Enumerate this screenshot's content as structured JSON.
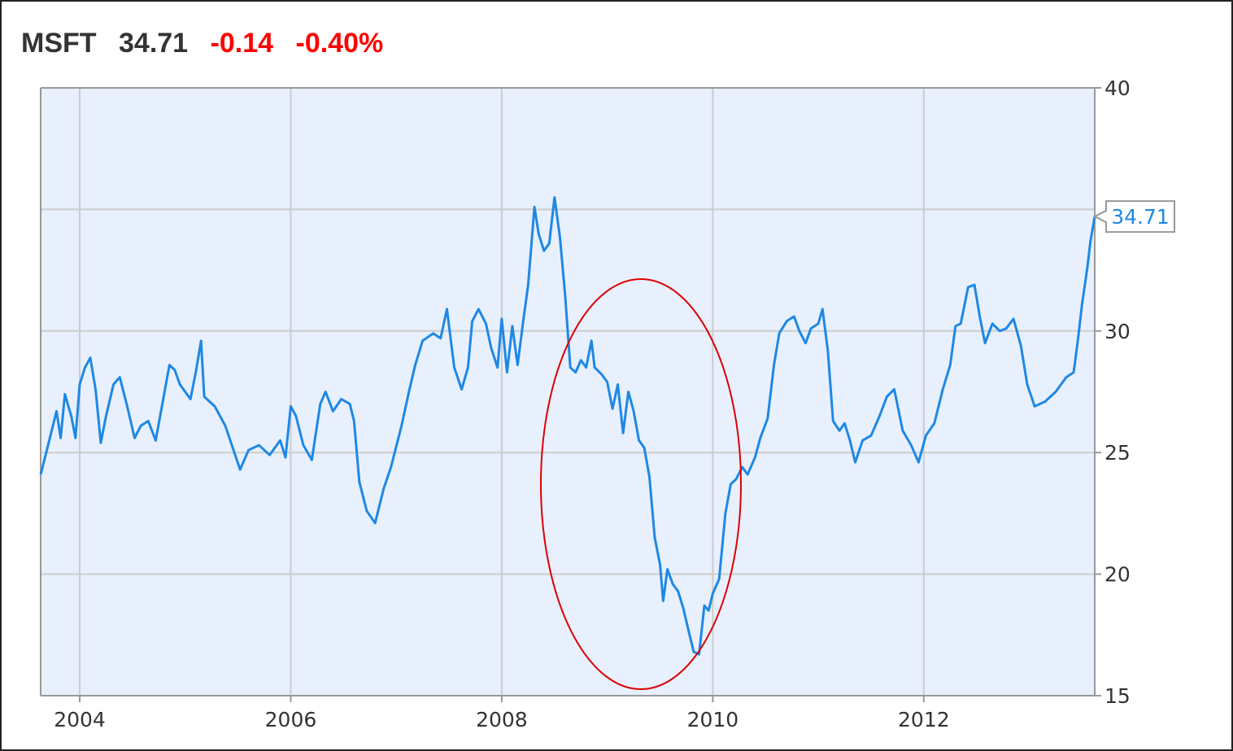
{
  "header": {
    "ticker": "MSFT",
    "price": "34.71",
    "change": "-0.14",
    "change_pct": "-0.40%"
  },
  "colors": {
    "line": "#1e88e5",
    "plot_bg": "#e8f0fd",
    "grid": "#cccccc",
    "negative": "#ff0000",
    "annotation": "#dd0000"
  },
  "chart_data": {
    "type": "line",
    "title": "",
    "xlabel": "",
    "ylabel": "",
    "xlim": [
      2003.63,
      2013.62
    ],
    "ylim": [
      15,
      40
    ],
    "x_ticks": [
      "2004",
      "2006",
      "2008",
      "2010",
      "2012"
    ],
    "y_ticks": [
      "15",
      "20",
      "25",
      "30",
      "40"
    ],
    "grid": true,
    "y_axis_side": "right",
    "last_value_label": "34.71",
    "annotation": "red ellipse around the 2008–2009 trough",
    "series": [
      {
        "values": [
          [
            2003.63,
            24.1
          ],
          [
            2003.7,
            25.3
          ],
          [
            2003.78,
            26.7
          ],
          [
            2003.82,
            25.6
          ],
          [
            2003.86,
            27.4
          ],
          [
            2003.92,
            26.5
          ],
          [
            2003.96,
            25.6
          ],
          [
            2004.0,
            27.8
          ],
          [
            2004.05,
            28.5
          ],
          [
            2004.1,
            28.9
          ],
          [
            2004.15,
            27.6
          ],
          [
            2004.2,
            25.4
          ],
          [
            2004.25,
            26.5
          ],
          [
            2004.32,
            27.8
          ],
          [
            2004.38,
            28.1
          ],
          [
            2004.45,
            26.9
          ],
          [
            2004.52,
            25.6
          ],
          [
            2004.58,
            26.1
          ],
          [
            2004.65,
            26.3
          ],
          [
            2004.72,
            25.5
          ],
          [
            2004.8,
            27.4
          ],
          [
            2004.85,
            28.6
          ],
          [
            2004.9,
            28.4
          ],
          [
            2004.95,
            27.8
          ],
          [
            2005.05,
            27.2
          ],
          [
            2005.1,
            28.3
          ],
          [
            2005.15,
            29.6
          ],
          [
            2005.18,
            27.3
          ],
          [
            2005.28,
            26.9
          ],
          [
            2005.38,
            26.1
          ],
          [
            2005.45,
            25.2
          ],
          [
            2005.52,
            24.3
          ],
          [
            2005.6,
            25.1
          ],
          [
            2005.7,
            25.3
          ],
          [
            2005.8,
            24.9
          ],
          [
            2005.9,
            25.5
          ],
          [
            2005.95,
            24.8
          ],
          [
            2006.0,
            26.9
          ],
          [
            2006.05,
            26.5
          ],
          [
            2006.12,
            25.3
          ],
          [
            2006.2,
            24.7
          ],
          [
            2006.28,
            27.0
          ],
          [
            2006.33,
            27.5
          ],
          [
            2006.4,
            26.7
          ],
          [
            2006.48,
            27.2
          ],
          [
            2006.56,
            27.0
          ],
          [
            2006.6,
            26.3
          ],
          [
            2006.65,
            23.8
          ],
          [
            2006.72,
            22.6
          ],
          [
            2006.8,
            22.1
          ],
          [
            2006.88,
            23.5
          ],
          [
            2006.95,
            24.4
          ],
          [
            2007.05,
            26.1
          ],
          [
            2007.12,
            27.5
          ],
          [
            2007.18,
            28.6
          ],
          [
            2007.25,
            29.6
          ],
          [
            2007.35,
            29.9
          ],
          [
            2007.42,
            29.7
          ],
          [
            2007.48,
            30.9
          ],
          [
            2007.55,
            28.5
          ],
          [
            2007.62,
            27.6
          ],
          [
            2007.68,
            28.5
          ],
          [
            2007.72,
            30.4
          ],
          [
            2007.78,
            30.9
          ],
          [
            2007.85,
            30.3
          ],
          [
            2007.9,
            29.3
          ],
          [
            2007.96,
            28.5
          ],
          [
            2008.0,
            30.5
          ],
          [
            2008.05,
            28.3
          ],
          [
            2008.1,
            30.2
          ],
          [
            2008.15,
            28.6
          ],
          [
            2008.2,
            30.3
          ],
          [
            2008.25,
            31.9
          ],
          [
            2008.31,
            35.1
          ],
          [
            2008.35,
            34.0
          ],
          [
            2008.4,
            33.3
          ],
          [
            2008.45,
            33.6
          ],
          [
            2008.5,
            35.5
          ],
          [
            2008.55,
            33.9
          ],
          [
            2008.6,
            31.5
          ],
          [
            2008.65,
            28.5
          ],
          [
            2008.7,
            28.3
          ],
          [
            2008.75,
            28.8
          ],
          [
            2008.8,
            28.5
          ],
          [
            2008.85,
            29.6
          ],
          [
            2008.88,
            28.5
          ],
          [
            2008.95,
            28.2
          ],
          [
            2009.0,
            27.9
          ],
          [
            2009.05,
            26.8
          ],
          [
            2009.1,
            27.8
          ],
          [
            2009.15,
            25.8
          ],
          [
            2009.2,
            27.5
          ],
          [
            2009.25,
            26.7
          ],
          [
            2009.3,
            25.5
          ],
          [
            2009.35,
            25.2
          ],
          [
            2009.4,
            24.0
          ],
          [
            2009.45,
            21.5
          ],
          [
            2009.5,
            20.4
          ],
          [
            2009.53,
            18.9
          ],
          [
            2009.57,
            20.2
          ],
          [
            2009.62,
            19.6
          ],
          [
            2009.67,
            19.3
          ],
          [
            2009.72,
            18.6
          ],
          [
            2009.78,
            17.5
          ],
          [
            2009.82,
            16.8
          ],
          [
            2009.87,
            16.7
          ],
          [
            2009.92,
            18.7
          ],
          [
            2009.96,
            18.5
          ],
          [
            2010.0,
            19.2
          ],
          [
            2010.06,
            19.8
          ],
          [
            2010.12,
            22.5
          ],
          [
            2010.17,
            23.7
          ],
          [
            2010.22,
            23.9
          ],
          [
            2010.28,
            24.4
          ],
          [
            2010.33,
            24.1
          ],
          [
            2010.4,
            24.8
          ],
          [
            2010.45,
            25.6
          ],
          [
            2010.52,
            26.4
          ],
          [
            2010.58,
            28.6
          ],
          [
            2010.63,
            29.9
          ],
          [
            2010.7,
            30.4
          ],
          [
            2010.77,
            30.6
          ],
          [
            2010.82,
            30.0
          ],
          [
            2010.88,
            29.5
          ],
          [
            2010.93,
            30.1
          ],
          [
            2011.0,
            30.3
          ],
          [
            2011.04,
            30.9
          ],
          [
            2011.09,
            29.2
          ],
          [
            2011.14,
            26.3
          ],
          [
            2011.2,
            25.9
          ],
          [
            2011.25,
            26.2
          ],
          [
            2011.3,
            25.5
          ],
          [
            2011.35,
            24.6
          ],
          [
            2011.42,
            25.5
          ],
          [
            2011.5,
            25.7
          ],
          [
            2011.58,
            26.5
          ],
          [
            2011.65,
            27.3
          ],
          [
            2011.72,
            27.6
          ],
          [
            2011.8,
            25.9
          ],
          [
            2011.88,
            25.3
          ],
          [
            2011.95,
            24.6
          ],
          [
            2012.02,
            25.7
          ],
          [
            2012.1,
            26.2
          ],
          [
            2012.18,
            27.6
          ],
          [
            2012.25,
            28.6
          ],
          [
            2012.3,
            30.2
          ],
          [
            2012.35,
            30.3
          ],
          [
            2012.42,
            31.8
          ],
          [
            2012.48,
            31.9
          ],
          [
            2012.53,
            30.6
          ],
          [
            2012.58,
            29.5
          ],
          [
            2012.65,
            30.3
          ],
          [
            2012.72,
            30.0
          ],
          [
            2012.78,
            30.1
          ],
          [
            2012.85,
            30.5
          ],
          [
            2012.92,
            29.4
          ],
          [
            2012.98,
            27.8
          ],
          [
            2013.05,
            26.9
          ],
          [
            2013.15,
            27.1
          ],
          [
            2013.25,
            27.5
          ],
          [
            2013.35,
            28.1
          ],
          [
            2013.42,
            28.3
          ],
          [
            2013.46,
            29.6
          ],
          [
            2013.5,
            31.1
          ],
          [
            2013.55,
            32.6
          ],
          [
            2013.58,
            33.7
          ],
          [
            2013.62,
            34.71
          ]
        ]
      }
    ]
  }
}
